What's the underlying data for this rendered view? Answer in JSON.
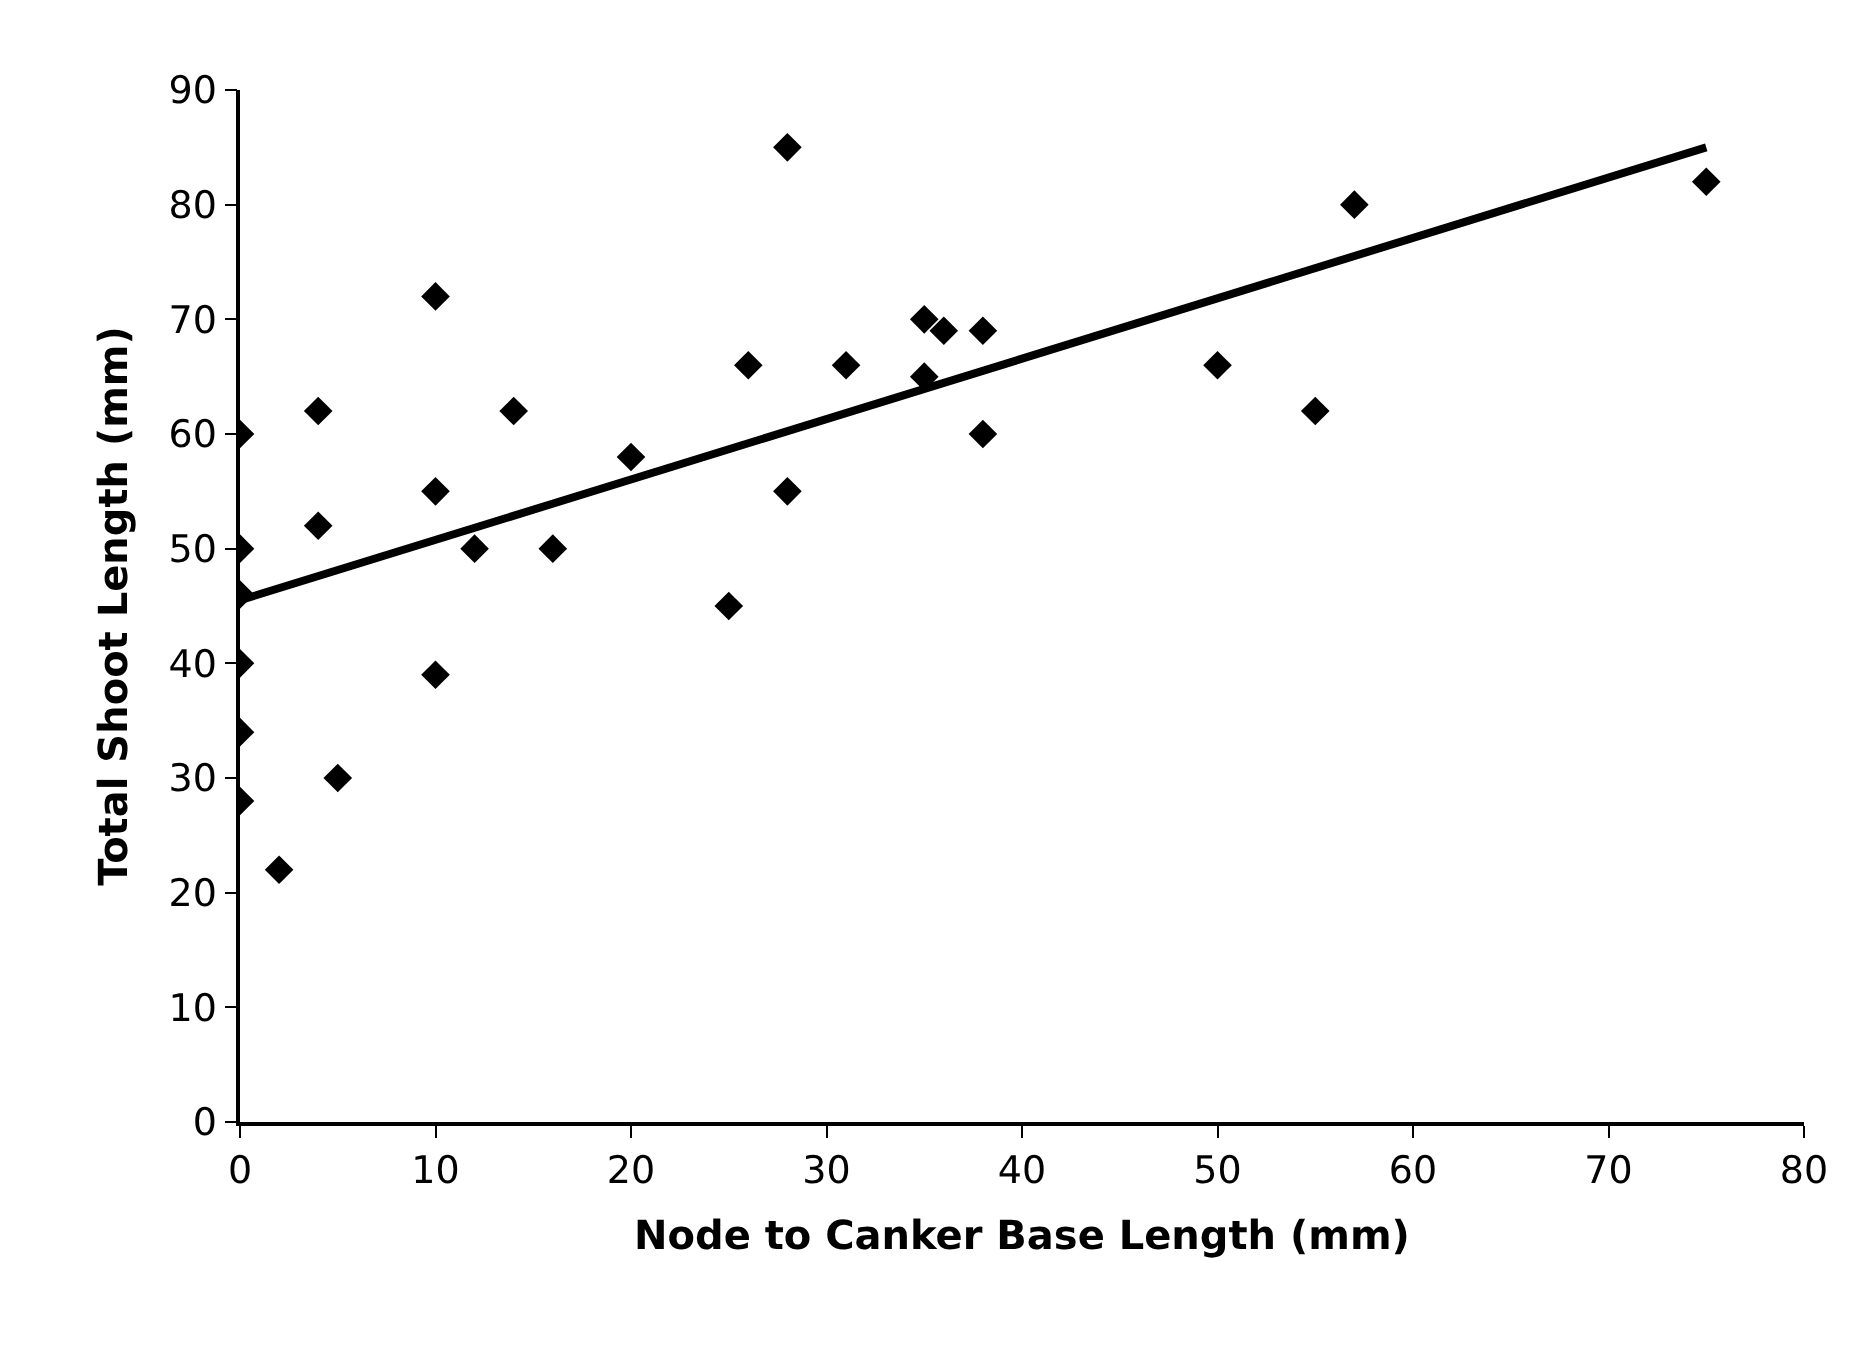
{
  "chart_data": {
    "type": "scatter",
    "xlabel": "Node to Canker Base Length (mm)",
    "ylabel": "Total Shoot Length (mm)",
    "xlim": [
      0,
      80
    ],
    "xticks": [
      0,
      10,
      20,
      30,
      40,
      50,
      60,
      70,
      80
    ],
    "ylim": [
      0,
      90
    ],
    "yticks": [
      0,
      10,
      20,
      30,
      40,
      50,
      60,
      70,
      80,
      90
    ],
    "series": [
      {
        "color": "#000000",
        "marker": "diamond",
        "x": [
          0,
          0,
          0,
          0,
          0,
          0,
          2,
          4,
          4,
          5,
          10,
          10,
          10,
          12,
          14,
          16,
          20,
          25,
          26,
          28,
          28,
          31,
          35,
          35,
          36,
          38,
          38,
          50,
          55,
          57,
          75
        ],
        "values": [
          60,
          50,
          46,
          40,
          34,
          28,
          22,
          62,
          52,
          30,
          72,
          55,
          39,
          50,
          62,
          50,
          58,
          45,
          66,
          85,
          55,
          66,
          70,
          65,
          69,
          69,
          60,
          66,
          62,
          80,
          82
        ]
      },
      {
        "type": "line",
        "color": "#000000",
        "marker": "none",
        "line_style": "solid",
        "x": [
          0,
          75
        ],
        "values": [
          45.5,
          85
        ]
      }
    ]
  }
}
